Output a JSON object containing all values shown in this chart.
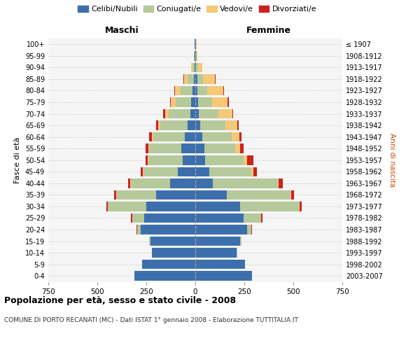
{
  "age_groups": [
    "0-4",
    "5-9",
    "10-14",
    "15-19",
    "20-24",
    "25-29",
    "30-34",
    "35-39",
    "40-44",
    "45-49",
    "50-54",
    "55-59",
    "60-64",
    "65-69",
    "70-74",
    "75-79",
    "80-84",
    "85-89",
    "90-94",
    "95-99",
    "100+"
  ],
  "birth_years": [
    "2003-2007",
    "1998-2002",
    "1993-1997",
    "1988-1992",
    "1983-1987",
    "1978-1982",
    "1973-1977",
    "1968-1972",
    "1963-1967",
    "1958-1962",
    "1953-1957",
    "1948-1952",
    "1943-1947",
    "1938-1942",
    "1933-1937",
    "1928-1932",
    "1923-1927",
    "1918-1922",
    "1913-1917",
    "1908-1912",
    "≤ 1907"
  ],
  "male_celibi": [
    310,
    270,
    220,
    230,
    280,
    260,
    250,
    200,
    130,
    90,
    65,
    70,
    55,
    40,
    25,
    20,
    15,
    8,
    5,
    3,
    2
  ],
  "male_coniugati": [
    0,
    0,
    2,
    5,
    15,
    60,
    195,
    200,
    200,
    175,
    175,
    165,
    160,
    140,
    110,
    80,
    60,
    30,
    10,
    3,
    2
  ],
  "male_vedovi": [
    0,
    0,
    0,
    0,
    1,
    2,
    2,
    2,
    2,
    2,
    3,
    5,
    8,
    10,
    20,
    25,
    30,
    20,
    5,
    2,
    1
  ],
  "male_divorziati": [
    0,
    0,
    0,
    2,
    3,
    5,
    8,
    12,
    10,
    10,
    10,
    15,
    12,
    10,
    8,
    5,
    3,
    2,
    0,
    0,
    0
  ],
  "female_celibi": [
    290,
    255,
    210,
    230,
    265,
    245,
    230,
    160,
    90,
    70,
    50,
    45,
    35,
    25,
    18,
    15,
    12,
    10,
    5,
    3,
    2
  ],
  "female_coniugati": [
    0,
    0,
    3,
    5,
    20,
    90,
    300,
    325,
    330,
    215,
    195,
    160,
    150,
    130,
    100,
    70,
    50,
    30,
    10,
    3,
    2
  ],
  "female_vedovi": [
    0,
    0,
    0,
    0,
    1,
    2,
    2,
    3,
    5,
    10,
    20,
    25,
    40,
    60,
    70,
    80,
    80,
    60,
    20,
    5,
    3
  ],
  "female_divorziati": [
    0,
    0,
    0,
    2,
    3,
    5,
    10,
    15,
    20,
    20,
    30,
    15,
    10,
    8,
    6,
    5,
    3,
    2,
    1,
    0,
    0
  ],
  "colors": {
    "celibi": "#3d6fad",
    "coniugati": "#b5c99a",
    "vedovi": "#f5c97a",
    "divorziati": "#cc2222"
  },
  "xlim": 750,
  "title": "Popolazione per età, sesso e stato civile - 2008",
  "subtitle": "COMUNE DI PORTO RECANATI (MC) - Dati ISTAT 1° gennaio 2008 - Elaborazione TUTTITALIA.IT",
  "label_maschi": "Maschi",
  "label_femmine": "Femmine",
  "ylabel_left": "Fasce di età",
  "ylabel_right": "Anni di nascita",
  "bg_color": "#f5f5f5",
  "grid_color": "#cccccc",
  "legend_labels": [
    "Celibi/Nubili",
    "Coniugati/e",
    "Vedovi/e",
    "Divorziati/e"
  ]
}
